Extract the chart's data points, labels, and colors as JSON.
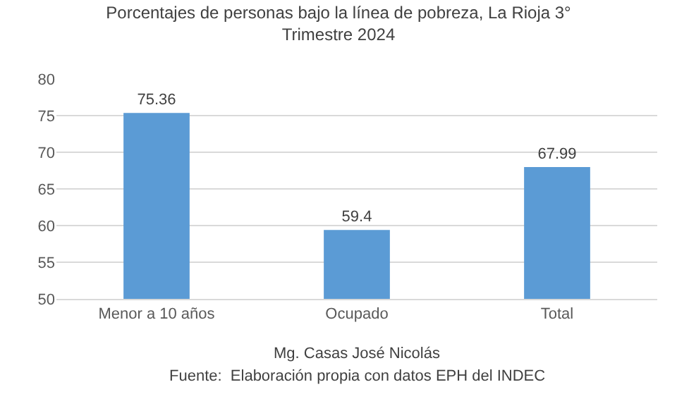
{
  "chart_data": {
    "type": "bar",
    "title": "Porcentajes de personas bajo la línea de pobreza, La Rioja 3° Trimestre 2024",
    "categories": [
      "Menor a 10 años",
      "Ocupado",
      "Total"
    ],
    "values": [
      75.36,
      59.4,
      67.99
    ],
    "color": "#5b9bd5",
    "ylim": [
      50,
      80
    ],
    "yticks": [
      50,
      55,
      60,
      65,
      70,
      75,
      80
    ],
    "grid": "y",
    "data_labels": true,
    "annotations": [
      "Mg. Casas José Nicolás",
      "Fuente:  Elaboración propia con datos EPH del INDEC"
    ]
  }
}
